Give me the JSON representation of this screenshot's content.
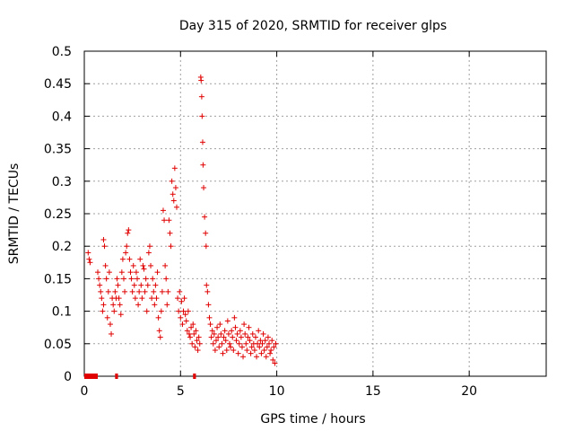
{
  "chart_data": {
    "type": "scatter",
    "title": "Day 315 of 2020, SRMTID for receiver glps",
    "xlabel": "GPS time / hours",
    "ylabel": "SRMTID / TECUs",
    "xlim": [
      0,
      24
    ],
    "ylim": [
      0,
      0.5
    ],
    "x_ticks": [
      0,
      5,
      10,
      15,
      20
    ],
    "x_tick_labels": [
      "0",
      "5",
      "10",
      "15",
      "20"
    ],
    "y_ticks": [
      0,
      0.05,
      0.1,
      0.15,
      0.2,
      0.25,
      0.3,
      0.35,
      0.4,
      0.45,
      0.5
    ],
    "y_tick_labels": [
      "0",
      "0.05",
      "0.1",
      "0.15",
      "0.2",
      "0.25",
      "0.3",
      "0.35",
      "0.4",
      "0.45",
      "0.5"
    ],
    "grid": true,
    "series_color": "#e00000",
    "marker": "plus",
    "series": [
      {
        "name": "SRMTID",
        "points": [
          [
            0.2,
            0.19
          ],
          [
            0.25,
            0.18
          ],
          [
            0.3,
            0.175
          ],
          [
            0.7,
            0.16
          ],
          [
            0.75,
            0.15
          ],
          [
            0.8,
            0.14
          ],
          [
            0.85,
            0.13
          ],
          [
            0.9,
            0.12
          ],
          [
            0.95,
            0.1
          ],
          [
            1.0,
            0.11
          ],
          [
            1.0,
            0.21
          ],
          [
            1.05,
            0.2
          ],
          [
            1.1,
            0.17
          ],
          [
            1.15,
            0.15
          ],
          [
            1.2,
            0.09
          ],
          [
            1.25,
            0.13
          ],
          [
            1.3,
            0.16
          ],
          [
            1.35,
            0.08
          ],
          [
            1.4,
            0.065
          ],
          [
            1.45,
            0.12
          ],
          [
            1.5,
            0.11
          ],
          [
            1.55,
            0.1
          ],
          [
            1.6,
            0.13
          ],
          [
            1.65,
            0.12
          ],
          [
            1.7,
            0.15
          ],
          [
            1.75,
            0.14
          ],
          [
            1.8,
            0.12
          ],
          [
            1.85,
            0.11
          ],
          [
            1.9,
            0.095
          ],
          [
            1.95,
            0.16
          ],
          [
            2.0,
            0.18
          ],
          [
            2.05,
            0.15
          ],
          [
            2.1,
            0.13
          ],
          [
            2.15,
            0.19
          ],
          [
            2.2,
            0.2
          ],
          [
            2.25,
            0.22
          ],
          [
            2.3,
            0.225
          ],
          [
            2.35,
            0.18
          ],
          [
            2.4,
            0.16
          ],
          [
            2.45,
            0.15
          ],
          [
            2.5,
            0.13
          ],
          [
            2.55,
            0.17
          ],
          [
            2.6,
            0.14
          ],
          [
            2.65,
            0.12
          ],
          [
            2.7,
            0.16
          ],
          [
            2.75,
            0.15
          ],
          [
            2.8,
            0.11
          ],
          [
            2.85,
            0.13
          ],
          [
            2.9,
            0.18
          ],
          [
            2.95,
            0.14
          ],
          [
            3.0,
            0.12
          ],
          [
            3.05,
            0.17
          ],
          [
            3.1,
            0.165
          ],
          [
            3.15,
            0.13
          ],
          [
            3.2,
            0.15
          ],
          [
            3.25,
            0.1
          ],
          [
            3.3,
            0.14
          ],
          [
            3.35,
            0.19
          ],
          [
            3.4,
            0.2
          ],
          [
            3.45,
            0.17
          ],
          [
            3.5,
            0.12
          ],
          [
            3.55,
            0.15
          ],
          [
            3.6,
            0.13
          ],
          [
            3.65,
            0.11
          ],
          [
            3.7,
            0.14
          ],
          [
            3.75,
            0.12
          ],
          [
            3.8,
            0.16
          ],
          [
            3.85,
            0.09
          ],
          [
            3.9,
            0.07
          ],
          [
            3.95,
            0.06
          ],
          [
            4.0,
            0.1
          ],
          [
            4.05,
            0.13
          ],
          [
            4.1,
            0.255
          ],
          [
            4.15,
            0.24
          ],
          [
            4.2,
            0.17
          ],
          [
            4.25,
            0.15
          ],
          [
            4.3,
            0.11
          ],
          [
            4.35,
            0.13
          ],
          [
            4.4,
            0.24
          ],
          [
            4.45,
            0.22
          ],
          [
            4.5,
            0.2
          ],
          [
            4.55,
            0.3
          ],
          [
            4.6,
            0.28
          ],
          [
            4.65,
            0.27
          ],
          [
            4.7,
            0.32
          ],
          [
            4.75,
            0.29
          ],
          [
            4.8,
            0.26
          ],
          [
            4.85,
            0.12
          ],
          [
            4.9,
            0.1
          ],
          [
            4.95,
            0.13
          ],
          [
            5.0,
            0.09
          ],
          [
            5.05,
            0.115
          ],
          [
            5.1,
            0.08
          ],
          [
            5.15,
            0.1
          ],
          [
            5.2,
            0.12
          ],
          [
            5.25,
            0.095
          ],
          [
            5.3,
            0.085
          ],
          [
            5.35,
            0.07
          ],
          [
            5.4,
            0.1
          ],
          [
            5.45,
            0.065
          ],
          [
            5.5,
            0.06
          ],
          [
            5.55,
            0.075
          ],
          [
            5.6,
            0.05
          ],
          [
            5.65,
            0.08
          ],
          [
            5.7,
            0.065
          ],
          [
            5.75,
            0.045
          ],
          [
            5.8,
            0.07
          ],
          [
            5.85,
            0.055
          ],
          [
            5.9,
            0.04
          ],
          [
            5.95,
            0.06
          ],
          [
            6.0,
            0.05
          ],
          [
            6.05,
            0.46
          ],
          [
            6.07,
            0.455
          ],
          [
            6.1,
            0.43
          ],
          [
            6.12,
            0.4
          ],
          [
            6.15,
            0.36
          ],
          [
            6.17,
            0.325
          ],
          [
            6.2,
            0.29
          ],
          [
            6.25,
            0.245
          ],
          [
            6.3,
            0.22
          ],
          [
            6.33,
            0.2
          ],
          [
            6.35,
            0.14
          ],
          [
            6.4,
            0.13
          ],
          [
            6.45,
            0.11
          ],
          [
            6.5,
            0.09
          ],
          [
            6.55,
            0.08
          ],
          [
            6.6,
            0.06
          ],
          [
            6.65,
            0.07
          ],
          [
            6.7,
            0.05
          ],
          [
            6.75,
            0.065
          ],
          [
            6.8,
            0.04
          ],
          [
            6.85,
            0.055
          ],
          [
            6.9,
            0.075
          ],
          [
            6.95,
            0.06
          ],
          [
            7.0,
            0.045
          ],
          [
            7.05,
            0.08
          ],
          [
            7.1,
            0.065
          ],
          [
            7.15,
            0.05
          ],
          [
            7.2,
            0.035
          ],
          [
            7.25,
            0.06
          ],
          [
            7.3,
            0.07
          ],
          [
            7.35,
            0.055
          ],
          [
            7.4,
            0.04
          ],
          [
            7.45,
            0.085
          ],
          [
            7.5,
            0.065
          ],
          [
            7.55,
            0.05
          ],
          [
            7.6,
            0.045
          ],
          [
            7.65,
            0.07
          ],
          [
            7.7,
            0.06
          ],
          [
            7.75,
            0.04
          ],
          [
            7.8,
            0.09
          ],
          [
            7.85,
            0.075
          ],
          [
            7.9,
            0.055
          ],
          [
            7.95,
            0.065
          ],
          [
            8.0,
            0.035
          ],
          [
            8.05,
            0.05
          ],
          [
            8.1,
            0.07
          ],
          [
            8.15,
            0.06
          ],
          [
            8.2,
            0.045
          ],
          [
            8.25,
            0.03
          ],
          [
            8.3,
            0.08
          ],
          [
            8.35,
            0.065
          ],
          [
            8.4,
            0.05
          ],
          [
            8.45,
            0.04
          ],
          [
            8.5,
            0.06
          ],
          [
            8.55,
            0.075
          ],
          [
            8.6,
            0.055
          ],
          [
            8.65,
            0.035
          ],
          [
            8.7,
            0.045
          ],
          [
            8.75,
            0.065
          ],
          [
            8.8,
            0.05
          ],
          [
            8.85,
            0.04
          ],
          [
            8.9,
            0.06
          ],
          [
            8.95,
            0.03
          ],
          [
            9.0,
            0.05
          ],
          [
            9.05,
            0.07
          ],
          [
            9.1,
            0.045
          ],
          [
            9.15,
            0.055
          ],
          [
            9.2,
            0.035
          ],
          [
            9.25,
            0.05
          ],
          [
            9.3,
            0.065
          ],
          [
            9.35,
            0.04
          ],
          [
            9.4,
            0.055
          ],
          [
            9.45,
            0.03
          ],
          [
            9.5,
            0.045
          ],
          [
            9.55,
            0.06
          ],
          [
            9.6,
            0.05
          ],
          [
            9.65,
            0.035
          ],
          [
            9.7,
            0.04
          ],
          [
            9.75,
            0.055
          ],
          [
            9.8,
            0.025
          ],
          [
            9.85,
            0.045
          ],
          [
            9.9,
            0.02
          ],
          [
            9.95,
            0.05
          ]
        ]
      }
    ],
    "data_gaps": [
      [
        0.0,
        0.7
      ],
      [
        1.6,
        1.75
      ],
      [
        5.65,
        5.8
      ]
    ]
  }
}
